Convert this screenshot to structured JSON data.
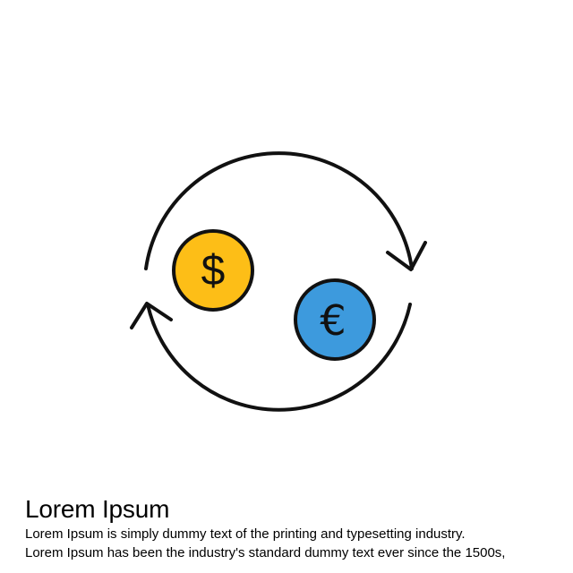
{
  "illustration": {
    "dollar_coin": {
      "icon": "dollar-coin-icon",
      "symbol": "$",
      "fill": "#FDBE17"
    },
    "euro_coin": {
      "icon": "euro-coin-icon",
      "symbol": "€",
      "fill": "#3D9ADD"
    },
    "arrows": {
      "icon": "circular-exchange-arrows-icon",
      "stroke": "#111111"
    }
  },
  "caption": {
    "title": "Lorem Ipsum",
    "line1": "Lorem Ipsum is simply dummy text of the printing and typesetting industry.",
    "line2": "Lorem Ipsum has been the industry's standard dummy text ever since the 1500s,"
  }
}
